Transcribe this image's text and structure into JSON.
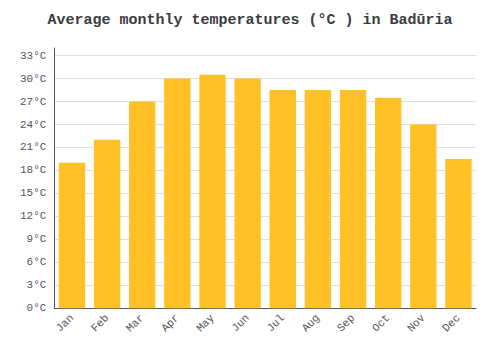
{
  "chart_data": {
    "type": "bar",
    "title": "Average monthly temperatures (°C ) in Badūria",
    "categories": [
      "Jan",
      "Feb",
      "Mar",
      "Apr",
      "May",
      "Jun",
      "Jul",
      "Aug",
      "Sep",
      "Oct",
      "Nov",
      "Dec"
    ],
    "values": [
      19,
      22,
      27,
      30,
      30.5,
      30,
      28.5,
      28.5,
      28.5,
      27.5,
      24,
      19.5
    ],
    "color": "#FFC125",
    "ylim": [
      0,
      34
    ],
    "yticks": [
      {
        "value": 0,
        "label": "0°C"
      },
      {
        "value": 3,
        "label": "3°C"
      },
      {
        "value": 6,
        "label": "6°C"
      },
      {
        "value": 9,
        "label": "9°C"
      },
      {
        "value": 12,
        "label": "12°C"
      },
      {
        "value": 15,
        "label": "15°C"
      },
      {
        "value": 18,
        "label": "18°C"
      },
      {
        "value": 21,
        "label": "21°C"
      },
      {
        "value": 24,
        "label": "24°C"
      },
      {
        "value": 27,
        "label": "27°C"
      },
      {
        "value": 30,
        "label": "30°C"
      },
      {
        "value": 33,
        "label": "33°C"
      }
    ],
    "grid": true
  }
}
